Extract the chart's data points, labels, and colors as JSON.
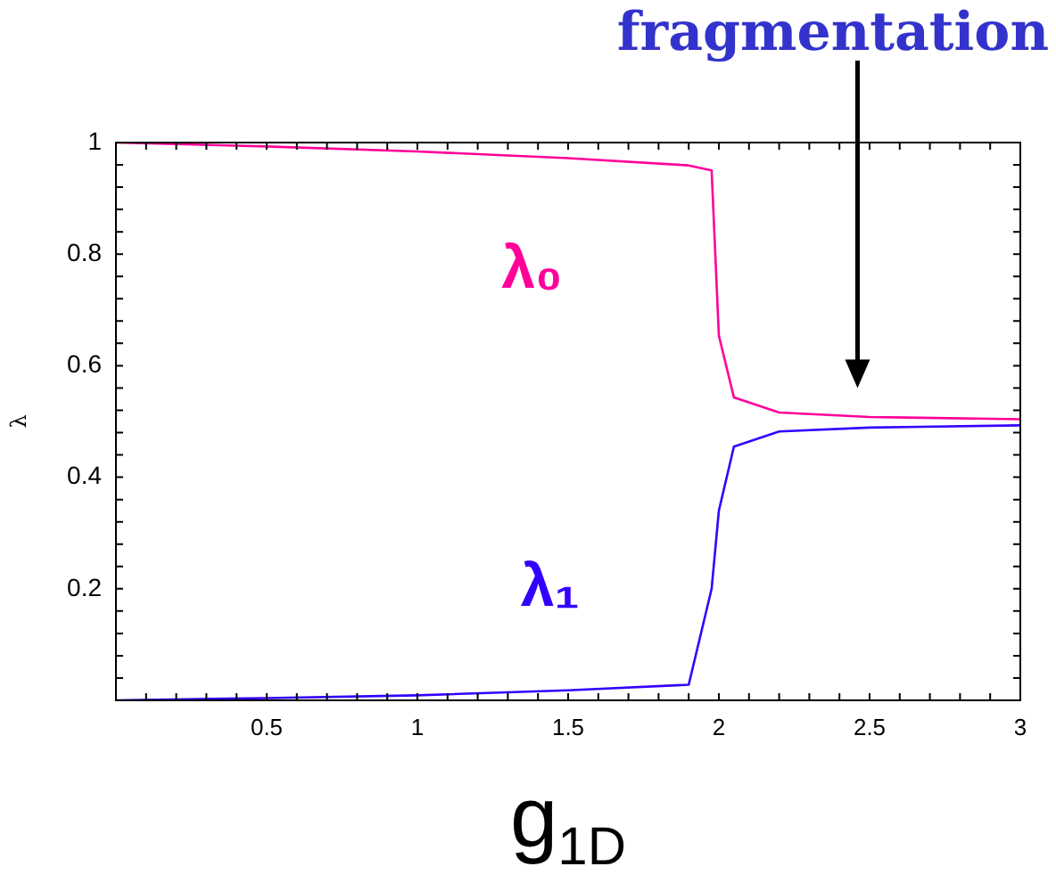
{
  "chart_data": {
    "type": "line",
    "xlabel": "g$_{1D}$",
    "ylabel": "λ",
    "x": [
      0,
      0.5,
      1,
      1.5,
      1.9,
      1.976,
      2.0,
      2.05,
      2.2,
      2.5,
      3
    ],
    "series": [
      {
        "name": "λ₀",
        "color": "#ff0099",
        "values": [
          1.0,
          0.993,
          0.984,
          0.972,
          0.959,
          0.95,
          0.654,
          0.543,
          0.516,
          0.508,
          0.504
        ]
      },
      {
        "name": "λ₁",
        "color": "#3300ff",
        "values": [
          0.0,
          0.004,
          0.009,
          0.018,
          0.028,
          0.2,
          0.34,
          0.455,
          0.482,
          0.489,
          0.493
        ]
      }
    ],
    "xlim": [
      0,
      3
    ],
    "xticks": [
      0.5,
      1,
      1.5,
      2,
      2.5,
      3
    ],
    "ylim": [
      0,
      1
    ],
    "yticks": [
      0.2,
      0.4,
      0.6,
      0.8,
      1
    ],
    "annotations": [
      "fragmentation"
    ],
    "grid": false,
    "legend": false,
    "marker": "none",
    "line_style": "solid"
  }
}
